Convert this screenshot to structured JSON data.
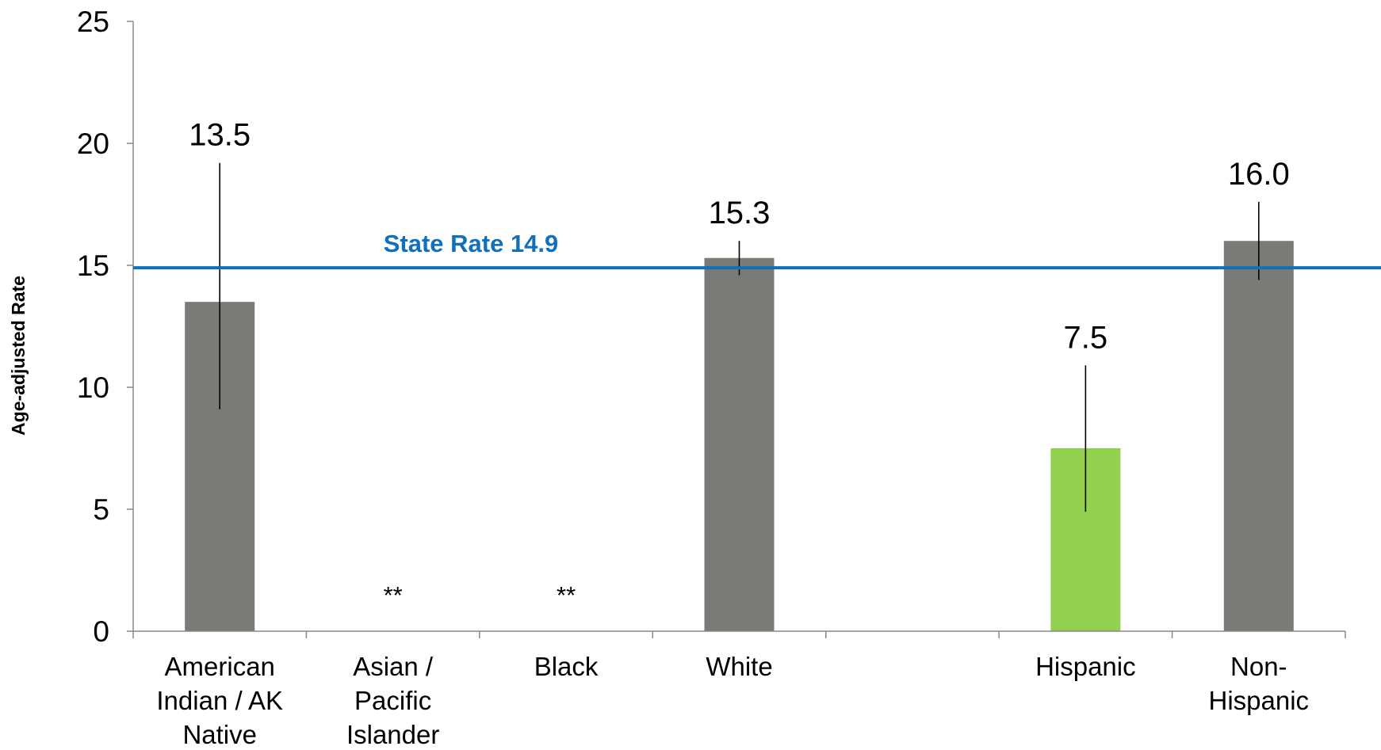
{
  "chart_data": {
    "type": "bar",
    "ylabel": "Age-adjusted Rate",
    "ylim": [
      0,
      25
    ],
    "yticks": [
      "0",
      "5",
      "10",
      "15",
      "20",
      "25"
    ],
    "categories": [
      {
        "lines": [
          "American",
          "Indian / AK",
          "Native"
        ],
        "value": 13.5,
        "label": "13.5",
        "ci": [
          9.1,
          19.2
        ],
        "color": "#7a7b76"
      },
      {
        "lines": [
          "Asian /",
          "Pacific",
          "Islander"
        ],
        "value": null,
        "label": "**",
        "ci": null,
        "color": "#7a7b76"
      },
      {
        "lines": [
          "Black"
        ],
        "value": null,
        "label": "**",
        "ci": null,
        "color": "#7a7b76"
      },
      {
        "lines": [
          "White"
        ],
        "value": 15.3,
        "label": "15.3",
        "ci": [
          14.6,
          16.0
        ],
        "color": "#7a7b76"
      },
      {
        "lines": [],
        "value": null,
        "label": "",
        "ci": null,
        "color": "#7a7b76"
      },
      {
        "lines": [
          "Hispanic"
        ],
        "value": 7.5,
        "label": "7.5",
        "ci": [
          4.9,
          10.9
        ],
        "color": "#92d050"
      },
      {
        "lines": [
          "Non-",
          "Hispanic"
        ],
        "value": 16.0,
        "label": "16.0",
        "ci": [
          14.4,
          17.6
        ],
        "color": "#7a7b76"
      }
    ],
    "reference_line": {
      "value": 14.9,
      "label": "State Rate 14.9",
      "color": "#0f70bc"
    },
    "grid": false,
    "legend": "none"
  }
}
